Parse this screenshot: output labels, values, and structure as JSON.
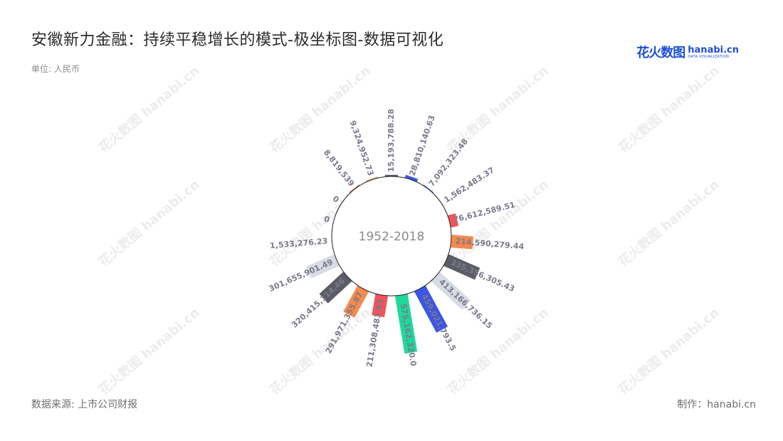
{
  "title": "安徽新力金融：持续平稳增长的模式-极坐标图-数据可视化",
  "unit": "单位: 人民币",
  "source": "数据来源: 上市公司财报",
  "maker": "制作：hanabi.cn",
  "logo": {
    "cn": "花火数图",
    "en": "hanabi.cn",
    "en_sub": "DATA VISUALIZATION"
  },
  "watermark": "花火数图 hanabi.cn",
  "chart_data": {
    "type": "bar",
    "polar": true,
    "center_label": "1952-2018",
    "values": [
      15193788.28,
      28810140.63,
      7092323.48,
      1562483.37,
      76612589.51,
      214590279.44,
      335356305.43,
      413166736.15,
      459021793.5,
      575162320.0,
      211308483.83,
      291971355.87,
      320415114.46,
      301655901.49,
      1533276.23,
      0,
      0,
      8819539,
      9324952.73
    ],
    "labels": [
      "15,193,788.28",
      "28,810,140.63",
      "7,092,323.48",
      "1,562,483.37",
      "76,612,589.51",
      "214,590,279.44",
      "335,356,305.43",
      "413,166,736.15",
      "459,021,793.5",
      "575,162,320.0",
      "211,308,483.83",
      "291,971,355.87",
      "320,415,114.46",
      "301,655,901.49",
      "1,533,276.23",
      "0",
      "0",
      "8,819,539",
      "9,324,952.73"
    ],
    "colors": [
      "#5b5c66",
      "#3b55e6",
      "#3b55e6",
      "#1fd99a",
      "#f2545b",
      "#f58a4b",
      "#5b5c66",
      "#d7dbe5",
      "#3b55e6",
      "#1fd99a",
      "#f2545b",
      "#f58a4b",
      "#5b5c66",
      "#d7dbe5",
      "#3b55e6",
      "#1fd99a",
      "#f2545b",
      "#f2545b",
      "#f58a4b"
    ]
  }
}
